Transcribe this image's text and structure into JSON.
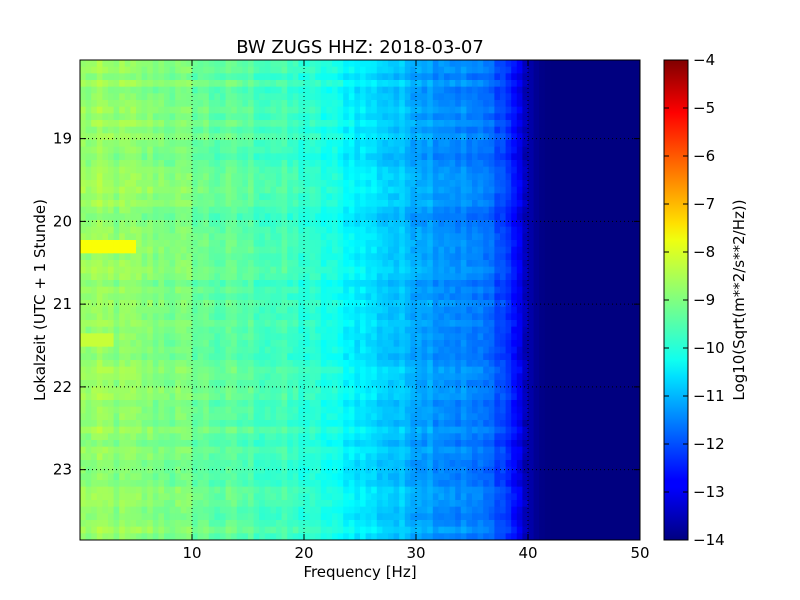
{
  "chart_data": {
    "type": "heatmap",
    "title": "BW ZUGS HHZ: 2018-03-07",
    "xlabel": "Frequency [Hz]",
    "ylabel": "Lokalzeit (UTC + 1 Stunde)",
    "xlim": [
      0,
      50
    ],
    "ylim": [
      18.05,
      23.85
    ],
    "y_inverted": true,
    "xticks": [
      10,
      20,
      30,
      40,
      50
    ],
    "yticks": [
      19,
      20,
      21,
      22,
      23
    ],
    "grid": true,
    "colormap": "jet",
    "colorbar": {
      "label": "Log10(Sqrt(m**2/s**2/Hz))",
      "range": [
        -14,
        -4
      ],
      "ticks": [
        -4,
        -5,
        -6,
        -7,
        -8,
        -9,
        -10,
        -11,
        -12,
        -13,
        -14
      ]
    },
    "frequency_profile": {
      "frequency_hz": [
        0,
        2,
        5,
        8,
        10,
        12,
        15,
        18,
        20,
        22,
        25,
        28,
        30,
        32,
        35,
        37,
        38,
        39,
        40,
        41,
        42,
        50
      ],
      "log10_amplitude": [
        -8.8,
        -8.8,
        -8.9,
        -9.0,
        -9.1,
        -9.3,
        -9.4,
        -9.6,
        -9.8,
        -10.0,
        -10.4,
        -10.8,
        -11.0,
        -11.2,
        -11.5,
        -11.8,
        -12.1,
        -12.8,
        -13.5,
        -13.9,
        -14.0,
        -14.0
      ]
    },
    "time_features": [
      {
        "hour": 20.32,
        "freq_range": [
          0,
          5
        ],
        "log10_amplitude": -7.8
      },
      {
        "hour": 21.45,
        "freq_range": [
          0,
          3
        ],
        "log10_amplitude": -8.3
      }
    ]
  }
}
